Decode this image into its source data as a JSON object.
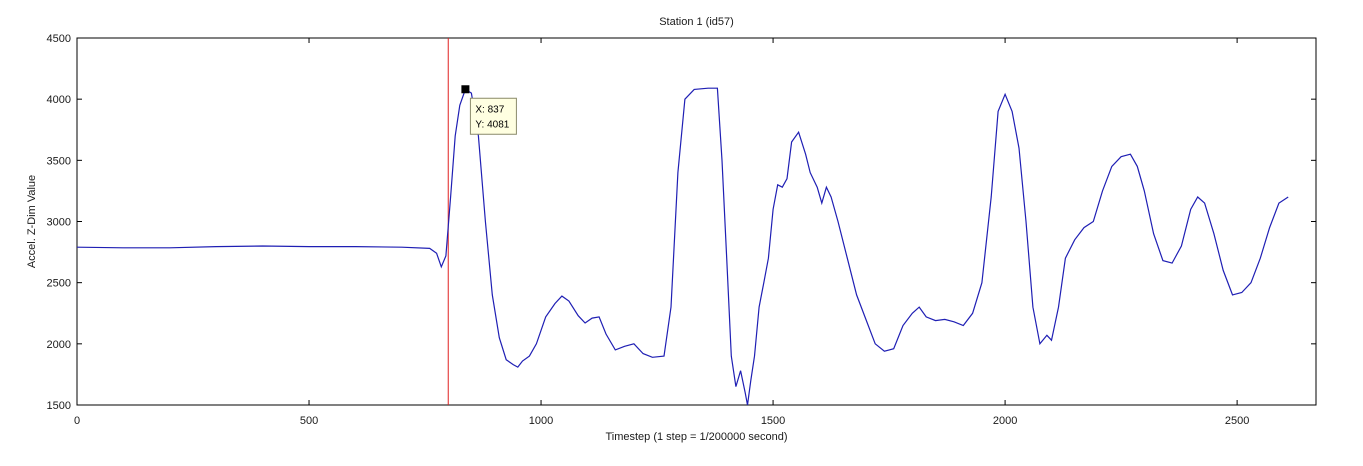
{
  "chart_data": {
    "type": "line",
    "title": "Station 1 (id57)",
    "xlabel": "Timestep (1 step = 1/200000 second)",
    "ylabel": "Accel. Z-Dim Value",
    "xlim": [
      0,
      2670
    ],
    "ylim": [
      1500,
      4500
    ],
    "xticks": [
      0,
      500,
      1000,
      1500,
      2000,
      2500
    ],
    "yticks": [
      1500,
      2000,
      2500,
      3000,
      3500,
      4000,
      4500
    ],
    "grid": false,
    "colors": {
      "series": "#1f1fb4",
      "marker_line": "#e02020",
      "datatip_bg": "#ffffe1"
    },
    "marker_line_x": 800,
    "datatip": {
      "x": 837,
      "y": 4081,
      "x_text": "X: 837",
      "y_text": "Y: 4081"
    },
    "series": [
      {
        "x": [
          0,
          100,
          200,
          300,
          400,
          500,
          600,
          700,
          760,
          775,
          785,
          795,
          805,
          815,
          825,
          837,
          850,
          865,
          880,
          895,
          910,
          925,
          940,
          950,
          960,
          975,
          990,
          1010,
          1030,
          1045,
          1060,
          1080,
          1095,
          1110,
          1125,
          1140,
          1160,
          1180,
          1200,
          1220,
          1240,
          1265,
          1280,
          1295,
          1310,
          1330,
          1360,
          1380,
          1390,
          1400,
          1410,
          1420,
          1430,
          1440,
          1445,
          1452,
          1460,
          1470,
          1480,
          1490,
          1500,
          1510,
          1520,
          1530,
          1540,
          1555,
          1570,
          1580,
          1595,
          1605,
          1615,
          1625,
          1640,
          1660,
          1680,
          1700,
          1720,
          1740,
          1760,
          1780,
          1800,
          1815,
          1830,
          1850,
          1870,
          1890,
          1910,
          1930,
          1950,
          1970,
          1985,
          2000,
          2015,
          2030,
          2045,
          2060,
          2075,
          2090,
          2100,
          2115,
          2130,
          2150,
          2170,
          2190,
          2210,
          2230,
          2250,
          2270,
          2285,
          2300,
          2320,
          2340,
          2360,
          2380,
          2400,
          2415,
          2430,
          2450,
          2470,
          2490,
          2510,
          2530,
          2550,
          2570,
          2590,
          2610
        ],
        "y": [
          2790,
          2785,
          2785,
          2795,
          2800,
          2795,
          2795,
          2790,
          2780,
          2740,
          2630,
          2720,
          3200,
          3700,
          3950,
          4081,
          4050,
          3700,
          3000,
          2400,
          2050,
          1870,
          1830,
          1810,
          1860,
          1900,
          2000,
          2220,
          2330,
          2390,
          2350,
          2230,
          2170,
          2210,
          2220,
          2080,
          1950,
          1980,
          2000,
          1920,
          1890,
          1900,
          2300,
          3400,
          4000,
          4080,
          4090,
          4090,
          3500,
          2700,
          1900,
          1650,
          1780,
          1600,
          1500,
          1700,
          1900,
          2300,
          2500,
          2700,
          3100,
          3300,
          3280,
          3350,
          3650,
          3730,
          3550,
          3400,
          3280,
          3150,
          3280,
          3200,
          3000,
          2700,
          2400,
          2200,
          2000,
          1940,
          1960,
          2150,
          2250,
          2300,
          2220,
          2190,
          2200,
          2180,
          2150,
          2250,
          2500,
          3200,
          3900,
          4040,
          3900,
          3600,
          3000,
          2300,
          2000,
          2070,
          2030,
          2300,
          2700,
          2850,
          2950,
          3000,
          3250,
          3450,
          3530,
          3550,
          3450,
          3250,
          2900,
          2680,
          2660,
          2800,
          3100,
          3200,
          3150,
          2900,
          2600,
          2400,
          2420,
          2500,
          2700,
          2950,
          3150,
          3200
        ]
      }
    ]
  }
}
